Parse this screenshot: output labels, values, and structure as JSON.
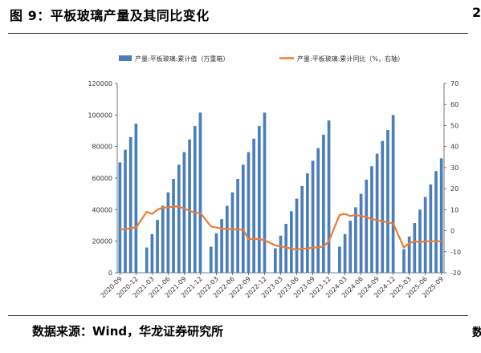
{
  "title": "图 9：平板玻璃产量及其同比变化",
  "title_right_fragment": "2",
  "source": "数据来源：Wind，华龙证券研究所",
  "source_right_fragment": "数",
  "chart_data": {
    "type": "bar",
    "categories": [
      "2020-09",
      "2020-10",
      "2020-11",
      "2020-12",
      "2021-01",
      "2021-02",
      "2021-03",
      "2021-04",
      "2021-05",
      "2021-06",
      "2021-07",
      "2021-08",
      "2021-09",
      "2021-10",
      "2021-11",
      "2021-12",
      "2022-01",
      "2022-02",
      "2022-03",
      "2022-04",
      "2022-05",
      "2022-06",
      "2022-07",
      "2022-08",
      "2022-09",
      "2022-10",
      "2022-11",
      "2022-12",
      "2023-01",
      "2023-02",
      "2023-03",
      "2023-04",
      "2023-05",
      "2023-06",
      "2023-07",
      "2023-08",
      "2023-09",
      "2023-10",
      "2023-11",
      "2023-12",
      "2024-01",
      "2024-02",
      "2024-03",
      "2024-04",
      "2024-05",
      "2024-06",
      "2024-07",
      "2024-08",
      "2024-09",
      "2024-10",
      "2024-11",
      "2024-12",
      "2025-01",
      "2025-02",
      "2025-03",
      "2025-04",
      "2025-05",
      "2025-06",
      "2025-07",
      "2025-08",
      "2025-09"
    ],
    "tick_labels": [
      "2020-09",
      "2020-12",
      "2021-03",
      "2021-06",
      "2021-09",
      "2021-12",
      "2022-03",
      "2022-06",
      "2022-09",
      "2022-12",
      "2023-03",
      "2023-06",
      "2023-09",
      "2023-12",
      "2024-03",
      "2024-06",
      "2024-09",
      "2024-12",
      "2025-03",
      "2025-06",
      "2025-09"
    ],
    "series": [
      {
        "name": "产量:平板玻璃:累计值（万重箱）",
        "type": "bar",
        "axis": "left",
        "color": "#4a7ebb",
        "values": [
          70000,
          78000,
          86000,
          94500,
          null,
          16000,
          24500,
          33500,
          42500,
          51000,
          59500,
          68500,
          76500,
          84500,
          93000,
          101500,
          null,
          16500,
          25000,
          34000,
          42500,
          51000,
          59500,
          68500,
          76500,
          85000,
          93000,
          101500,
          null,
          15500,
          23500,
          31000,
          39000,
          47000,
          55000,
          63000,
          71000,
          79000,
          87500,
          96500,
          null,
          16500,
          24500,
          33000,
          41500,
          50000,
          59000,
          67500,
          75500,
          83500,
          90500,
          100000,
          null,
          15000,
          23000,
          31500,
          40000,
          48000,
          56000,
          64500,
          72500
        ]
      },
      {
        "name": "产量:平板玻璃:累计同比（%，右轴）",
        "type": "line",
        "axis": "right",
        "color": "#ed7d31",
        "values": [
          0.5,
          0.8,
          1.2,
          1.5,
          null,
          9,
          8,
          10,
          11,
          11,
          11.5,
          11.5,
          10.5,
          9.5,
          8.5,
          8.5,
          null,
          2,
          1.5,
          1,
          0.8,
          0.8,
          0.5,
          0.5,
          -4,
          -4,
          -4,
          -4.5,
          null,
          -7,
          -7.5,
          -8,
          -8.5,
          -9,
          -8.5,
          -8.5,
          -8,
          -8,
          -7.5,
          -5,
          null,
          7.5,
          8,
          7,
          7.5,
          7,
          6.5,
          5.5,
          5,
          4.5,
          4,
          3.5,
          null,
          -8,
          -6,
          -5,
          -5.5,
          -5,
          -5,
          -5,
          -5
        ]
      }
    ],
    "y_left": {
      "min": 0,
      "max": 120000,
      "ticks": [
        0,
        20000,
        40000,
        60000,
        80000,
        100000,
        120000
      ]
    },
    "y_right": {
      "min": -20,
      "max": 70,
      "ticks": [
        -20,
        -10,
        0,
        10,
        20,
        30,
        40,
        50,
        60,
        70
      ]
    },
    "legend_position": "top",
    "grid": false
  }
}
